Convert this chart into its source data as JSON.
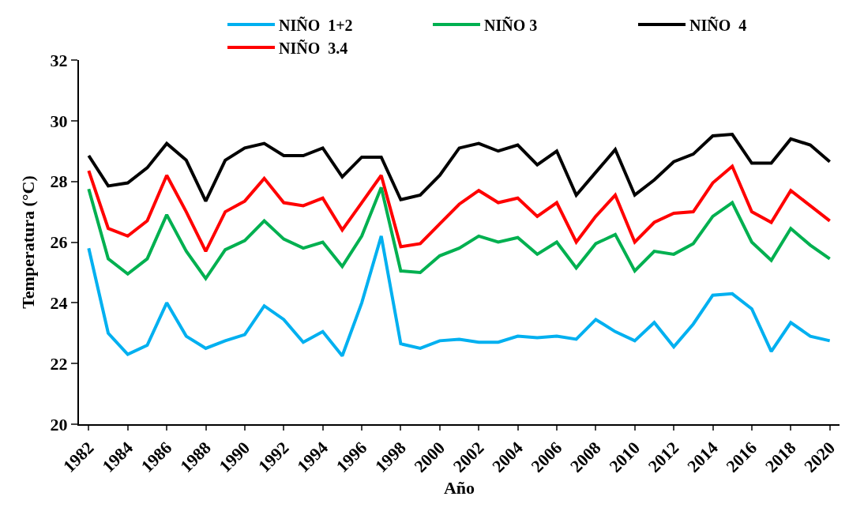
{
  "chart_data": {
    "type": "line",
    "xlabel": "Año",
    "ylabel": "Temperatura (°C)",
    "x": [
      1982,
      1983,
      1984,
      1985,
      1986,
      1987,
      1988,
      1989,
      1990,
      1991,
      1992,
      1993,
      1994,
      1995,
      1996,
      1997,
      1998,
      1999,
      2000,
      2001,
      2002,
      2003,
      2004,
      2005,
      2006,
      2007,
      2008,
      2009,
      2010,
      2011,
      2012,
      2013,
      2014,
      2015,
      2016,
      2017,
      2018,
      2019,
      2020
    ],
    "series": [
      {
        "name": "NIÑO  1+2",
        "color": "#00b0f0",
        "values": [
          25.8,
          23.0,
          22.3,
          22.6,
          24.0,
          22.9,
          22.5,
          22.75,
          22.95,
          23.9,
          23.45,
          22.7,
          23.05,
          22.25,
          24.0,
          26.2,
          22.65,
          22.5,
          22.75,
          22.8,
          22.7,
          22.7,
          22.9,
          22.85,
          22.9,
          22.8,
          23.45,
          23.05,
          22.75,
          23.35,
          22.55,
          23.3,
          24.25,
          24.3,
          23.8,
          22.4,
          23.35,
          22.9,
          22.75
        ]
      },
      {
        "name": "NIÑO 3",
        "color": "#00b050",
        "values": [
          27.75,
          25.45,
          24.95,
          25.45,
          26.9,
          25.7,
          24.8,
          25.75,
          26.05,
          26.7,
          26.1,
          25.8,
          26.0,
          25.2,
          26.2,
          27.8,
          25.05,
          25.0,
          25.55,
          25.8,
          26.2,
          26.0,
          26.15,
          25.6,
          26.0,
          25.15,
          25.95,
          26.25,
          25.05,
          25.7,
          25.6,
          25.95,
          26.85,
          27.3,
          26.0,
          25.4,
          26.45,
          25.9,
          25.45
        ]
      },
      {
        "name": "NIÑO  4",
        "color": "#000000",
        "values": [
          28.85,
          27.85,
          27.95,
          28.45,
          29.25,
          28.7,
          27.35,
          28.7,
          29.1,
          29.25,
          28.85,
          28.85,
          29.1,
          28.15,
          28.8,
          28.8,
          27.4,
          27.55,
          28.2,
          29.1,
          29.25,
          29.0,
          29.2,
          28.55,
          29.0,
          27.55,
          28.3,
          29.05,
          27.55,
          28.05,
          28.65,
          28.9,
          29.5,
          29.55,
          28.6,
          28.6,
          29.4,
          29.2,
          28.65
        ]
      },
      {
        "name": "NIÑO  3.4",
        "color": "#ff0000",
        "values": [
          28.35,
          26.45,
          26.2,
          26.7,
          28.2,
          27.0,
          25.7,
          27.0,
          27.35,
          28.1,
          27.3,
          27.2,
          27.45,
          26.4,
          27.3,
          28.2,
          25.85,
          25.95,
          26.6,
          27.25,
          27.7,
          27.3,
          27.45,
          26.85,
          27.3,
          26.0,
          26.85,
          27.55,
          26.0,
          26.65,
          26.95,
          27.0,
          27.95,
          28.5,
          27.0,
          26.65,
          27.7,
          27.2,
          26.7
        ]
      }
    ],
    "xlim": [
      1981.5,
      2020.5
    ],
    "xticks": [
      1982,
      1984,
      1986,
      1988,
      1990,
      1992,
      1994,
      1996,
      1998,
      2000,
      2002,
      2004,
      2006,
      2008,
      2010,
      2012,
      2014,
      2016,
      2018,
      2020
    ],
    "ylim": [
      20,
      32
    ],
    "yticks": [
      20,
      22,
      24,
      26,
      28,
      30,
      32
    ],
    "grid": false,
    "legend": "top right",
    "line_style": "solid"
  }
}
